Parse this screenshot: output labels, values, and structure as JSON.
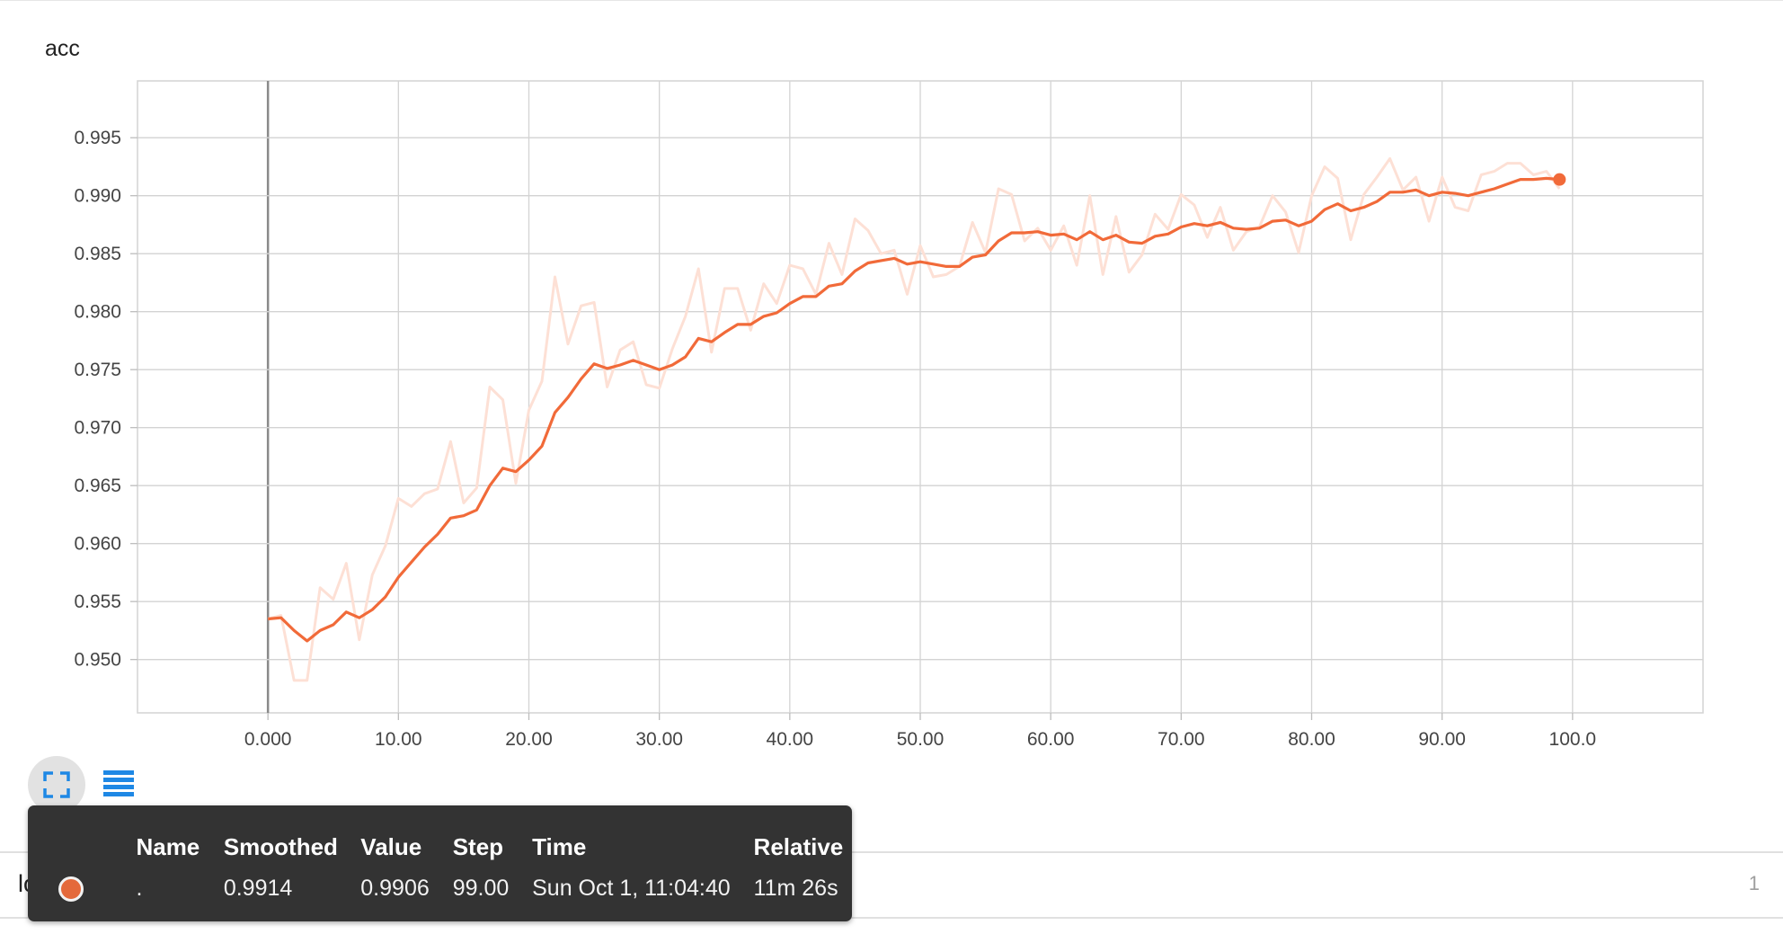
{
  "card": {
    "title": "acc"
  },
  "chart_data": {
    "type": "line",
    "title": "acc",
    "xlabel": "",
    "ylabel": "",
    "x_ticks": [
      "0.000",
      "10.00",
      "20.00",
      "30.00",
      "40.00",
      "50.00",
      "60.00",
      "70.00",
      "80.00",
      "90.00",
      "100.0"
    ],
    "y_ticks": [
      "0.950",
      "0.955",
      "0.960",
      "0.965",
      "0.970",
      "0.975",
      "0.980",
      "0.985",
      "0.990",
      "0.995"
    ],
    "xlim": [
      -10,
      110
    ],
    "ylim": [
      0.9454,
      0.9999
    ],
    "grid": true,
    "x": [
      0,
      1,
      2,
      3,
      4,
      5,
      6,
      7,
      8,
      9,
      10,
      11,
      12,
      13,
      14,
      15,
      16,
      17,
      18,
      19,
      20,
      21,
      22,
      23,
      24,
      25,
      26,
      27,
      28,
      29,
      30,
      31,
      32,
      33,
      34,
      35,
      36,
      37,
      38,
      39,
      40,
      41,
      42,
      43,
      44,
      45,
      46,
      47,
      48,
      49,
      50,
      51,
      52,
      53,
      54,
      55,
      56,
      57,
      58,
      59,
      60,
      61,
      62,
      63,
      64,
      65,
      66,
      67,
      68,
      69,
      70,
      71,
      72,
      73,
      74,
      75,
      76,
      77,
      78,
      79,
      80,
      81,
      82,
      83,
      84,
      85,
      86,
      87,
      88,
      89,
      90,
      91,
      92,
      93,
      94,
      95,
      96,
      97,
      98,
      99
    ],
    "series": [
      {
        "name": "smoothed",
        "color": "#f16a39",
        "values": [
          0.9535,
          0.9536,
          0.9525,
          0.9516,
          0.9525,
          0.953,
          0.9541,
          0.9536,
          0.9543,
          0.9554,
          0.9571,
          0.9584,
          0.9597,
          0.9608,
          0.9622,
          0.9624,
          0.9629,
          0.965,
          0.9665,
          0.9662,
          0.9672,
          0.9684,
          0.9713,
          0.9726,
          0.9742,
          0.9755,
          0.9751,
          0.9754,
          0.9758,
          0.9754,
          0.975,
          0.9754,
          0.9761,
          0.9777,
          0.9774,
          0.9782,
          0.9789,
          0.9789,
          0.9796,
          0.9799,
          0.9807,
          0.9813,
          0.9813,
          0.9822,
          0.9824,
          0.9835,
          0.9842,
          0.9844,
          0.9846,
          0.9841,
          0.9843,
          0.9841,
          0.9839,
          0.9839,
          0.9847,
          0.9849,
          0.9861,
          0.9868,
          0.9868,
          0.9869,
          0.9866,
          0.9867,
          0.9862,
          0.9869,
          0.9862,
          0.9866,
          0.986,
          0.9859,
          0.9865,
          0.9867,
          0.9873,
          0.9876,
          0.9874,
          0.9877,
          0.9872,
          0.9871,
          0.9872,
          0.9878,
          0.9879,
          0.9874,
          0.9878,
          0.9888,
          0.9893,
          0.9887,
          0.989,
          0.9895,
          0.9903,
          0.9903,
          0.9905,
          0.99,
          0.9903,
          0.9902,
          0.99,
          0.9903,
          0.9906,
          0.991,
          0.9914,
          0.9914,
          0.9915,
          0.9914
        ]
      },
      {
        "name": "raw",
        "color": "#fde0d5",
        "values": [
          0.9535,
          0.9538,
          0.9482,
          0.9482,
          0.9562,
          0.9552,
          0.9583,
          0.9517,
          0.9573,
          0.9598,
          0.9639,
          0.9632,
          0.9643,
          0.9647,
          0.9688,
          0.9635,
          0.9648,
          0.9735,
          0.9724,
          0.9652,
          0.9715,
          0.974,
          0.983,
          0.9772,
          0.9805,
          0.9808,
          0.9735,
          0.9767,
          0.9774,
          0.9737,
          0.9734,
          0.9768,
          0.9796,
          0.9837,
          0.9765,
          0.982,
          0.982,
          0.9784,
          0.9824,
          0.9807,
          0.984,
          0.9837,
          0.9815,
          0.9859,
          0.9832,
          0.988,
          0.987,
          0.985,
          0.9853,
          0.9815,
          0.9857,
          0.983,
          0.9832,
          0.9839,
          0.9877,
          0.9851,
          0.9906,
          0.9901,
          0.9861,
          0.9872,
          0.9853,
          0.9874,
          0.984,
          0.99,
          0.9832,
          0.9882,
          0.9834,
          0.9849,
          0.9884,
          0.9871,
          0.9901,
          0.9892,
          0.9864,
          0.989,
          0.9853,
          0.9869,
          0.9873,
          0.99,
          0.9886,
          0.9851,
          0.99,
          0.9925,
          0.9915,
          0.9862,
          0.9901,
          0.9916,
          0.9932,
          0.9905,
          0.9916,
          0.9878,
          0.9916,
          0.989,
          0.9887,
          0.9918,
          0.9921,
          0.9928,
          0.9928,
          0.9918,
          0.9921,
          0.9906
        ]
      }
    ],
    "highlight": {
      "x": 99,
      "y": 0.9914
    }
  },
  "controls": {
    "fit_icon": "fit-to-data-icon",
    "data_icon": "data-table-icon"
  },
  "run_row": {
    "tag": "loss",
    "count": "1"
  },
  "tooltip": {
    "headers": {
      "name": "Name",
      "smoothed": "Smoothed",
      "value": "Value",
      "step": "Step",
      "time": "Time",
      "relative": "Relative"
    },
    "row": {
      "color": "#e4693b",
      "name": ".",
      "smoothed": "0.9914",
      "value": "0.9906",
      "step": "99.00",
      "time": "Sun Oct 1, 11:04:40",
      "relative": "11m 26s"
    }
  }
}
